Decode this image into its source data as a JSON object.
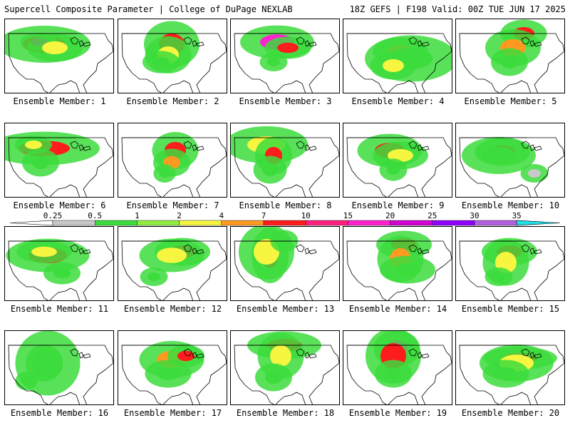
{
  "header": {
    "title": "Supercell Composite Parameter | College of DuPage NEXLAB",
    "run_info": "18Z GEFS | F198 Valid: 00Z TUE JUN 17 2025"
  },
  "colorbar": {
    "labels": [
      "0.25",
      "0.5",
      "1",
      "2",
      "4",
      "7",
      "10",
      "15",
      "20",
      "25",
      "30",
      "35"
    ],
    "colors": [
      "#c8c8c8",
      "#3cdc3c",
      "#90ee40",
      "#f6f640",
      "#ff9a20",
      "#ff1c1c",
      "#ff2080",
      "#ff20d0",
      "#d000d0",
      "#9000ff",
      "#b060e0",
      "#20e0e8"
    ]
  },
  "members": [
    {
      "label": "Ensemble Member: 1",
      "blobs": [
        [
          55,
          35,
          50,
          20,
          "#ff1c1c"
        ],
        [
          48,
          32,
          20,
          10,
          "#ff20d0"
        ],
        [
          70,
          40,
          30,
          15,
          "#f6f640"
        ]
      ]
    },
    {
      "label": "Ensemble Member: 2",
      "blobs": [
        [
          75,
          35,
          30,
          25,
          "#ff1c1c"
        ],
        [
          70,
          50,
          25,
          20,
          "#f6f640"
        ],
        [
          60,
          60,
          20,
          12,
          "#3cdc3c"
        ]
      ]
    },
    {
      "label": "Ensemble Member: 3",
      "blobs": [
        [
          65,
          32,
          40,
          18,
          "#ff20d0"
        ],
        [
          80,
          40,
          25,
          12,
          "#ff1c1c"
        ],
        [
          60,
          60,
          15,
          10,
          "#3cdc3c"
        ]
      ]
    },
    {
      "label": "Ensemble Member: 4",
      "blobs": [
        [
          80,
          45,
          30,
          15,
          "#ff9a20"
        ],
        [
          95,
          55,
          50,
          25,
          "#3cdc3c"
        ],
        [
          70,
          65,
          25,
          15,
          "#f6f640"
        ]
      ]
    },
    {
      "label": "Ensemble Member: 5",
      "blobs": [
        [
          95,
          20,
          25,
          15,
          "#ff1c1c"
        ],
        [
          80,
          40,
          30,
          20,
          "#ff9a20"
        ],
        [
          75,
          60,
          20,
          15,
          "#3cdc3c"
        ]
      ]
    },
    {
      "label": "Ensemble Member: 6",
      "blobs": [
        [
          55,
          35,
          60,
          18,
          "#ff1c1c"
        ],
        [
          40,
          30,
          20,
          10,
          "#f6f640"
        ],
        [
          50,
          55,
          20,
          15,
          "#3cdc3c"
        ]
      ]
    },
    {
      "label": "Ensemble Member: 7",
      "blobs": [
        [
          80,
          38,
          25,
          20,
          "#ff1c1c"
        ],
        [
          75,
          55,
          20,
          15,
          "#ff9a20"
        ],
        [
          65,
          70,
          12,
          10,
          "#3cdc3c"
        ]
      ]
    },
    {
      "label": "Ensemble Member: 8",
      "blobs": [
        [
          50,
          30,
          45,
          20,
          "#f6f640"
        ],
        [
          60,
          45,
          20,
          20,
          "#ff1c1c"
        ],
        [
          55,
          65,
          18,
          15,
          "#3cdc3c"
        ]
      ]
    },
    {
      "label": "Ensemble Member: 9",
      "blobs": [
        [
          65,
          38,
          35,
          18,
          "#ff1c1c"
        ],
        [
          80,
          45,
          30,
          15,
          "#f6f640"
        ],
        [
          70,
          65,
          15,
          12,
          "#3cdc3c"
        ]
      ]
    },
    {
      "label": "Ensemble Member: 10",
      "blobs": [
        [
          65,
          40,
          30,
          15,
          "#ff1c1c"
        ],
        [
          60,
          45,
          40,
          20,
          "#3cdc3c"
        ],
        [
          110,
          70,
          15,
          10,
          "#c8c8c8"
        ]
      ]
    },
    {
      "label": "Ensemble Member: 11",
      "blobs": [
        [
          60,
          40,
          45,
          18,
          "#ff1c1c"
        ],
        [
          55,
          35,
          30,
          12,
          "#f6f640"
        ],
        [
          80,
          65,
          20,
          12,
          "#3cdc3c"
        ]
      ]
    },
    {
      "label": "Ensemble Member: 12",
      "blobs": [
        [
          90,
          35,
          30,
          15,
          "#ff1c1c"
        ],
        [
          75,
          40,
          35,
          18,
          "#f6f640"
        ],
        [
          50,
          70,
          15,
          10,
          "#3cdc3c"
        ]
      ]
    },
    {
      "label": "Ensemble Member: 13",
      "blobs": [
        [
          55,
          40,
          20,
          30,
          "#ff1c1c"
        ],
        [
          50,
          35,
          30,
          30,
          "#f6f640"
        ],
        [
          75,
          20,
          15,
          12,
          "#3cdc3c"
        ]
      ]
    },
    {
      "label": "Ensemble Member: 14",
      "blobs": [
        [
          85,
          25,
          30,
          15,
          "#ff1c1c"
        ],
        [
          80,
          45,
          25,
          25,
          "#ff9a20"
        ],
        [
          90,
          60,
          30,
          15,
          "#3cdc3c"
        ]
      ]
    },
    {
      "label": "Ensemble Member: 15",
      "blobs": [
        [
          75,
          35,
          30,
          15,
          "#ff1c1c"
        ],
        [
          70,
          50,
          25,
          25,
          "#f6f640"
        ],
        [
          60,
          70,
          15,
          10,
          "#3cdc3c"
        ]
      ]
    },
    {
      "label": "Ensemble Member: 16",
      "blobs": [
        [
          55,
          45,
          20,
          20,
          "#ff1c1c"
        ],
        [
          60,
          45,
          35,
          35,
          "#3cdc3c"
        ],
        [
          30,
          70,
          12,
          10,
          "#3cdc3c"
        ]
      ]
    },
    {
      "label": "Ensemble Member: 17",
      "blobs": [
        [
          75,
          40,
          35,
          20,
          "#ff9a20"
        ],
        [
          95,
          35,
          20,
          12,
          "#ff1c1c"
        ],
        [
          70,
          60,
          25,
          15,
          "#3cdc3c"
        ]
      ]
    },
    {
      "label": "Ensemble Member: 18",
      "blobs": [
        [
          75,
          20,
          40,
          15,
          "#ff1c1c"
        ],
        [
          70,
          35,
          25,
          25,
          "#f6f640"
        ],
        [
          60,
          65,
          20,
          15,
          "#3cdc3c"
        ]
      ]
    },
    {
      "label": "Ensemble Member: 19",
      "blobs": [
        [
          75,
          25,
          25,
          20,
          "#ff20d0"
        ],
        [
          70,
          35,
          30,
          30,
          "#ff1c1c"
        ],
        [
          70,
          60,
          20,
          15,
          "#3cdc3c"
        ]
      ]
    },
    {
      "label": "Ensemble Member: 20",
      "blobs": [
        [
          90,
          38,
          40,
          12,
          "#ff1c1c"
        ],
        [
          85,
          45,
          40,
          20,
          "#f6f640"
        ],
        [
          70,
          60,
          25,
          15,
          "#3cdc3c"
        ]
      ]
    }
  ]
}
